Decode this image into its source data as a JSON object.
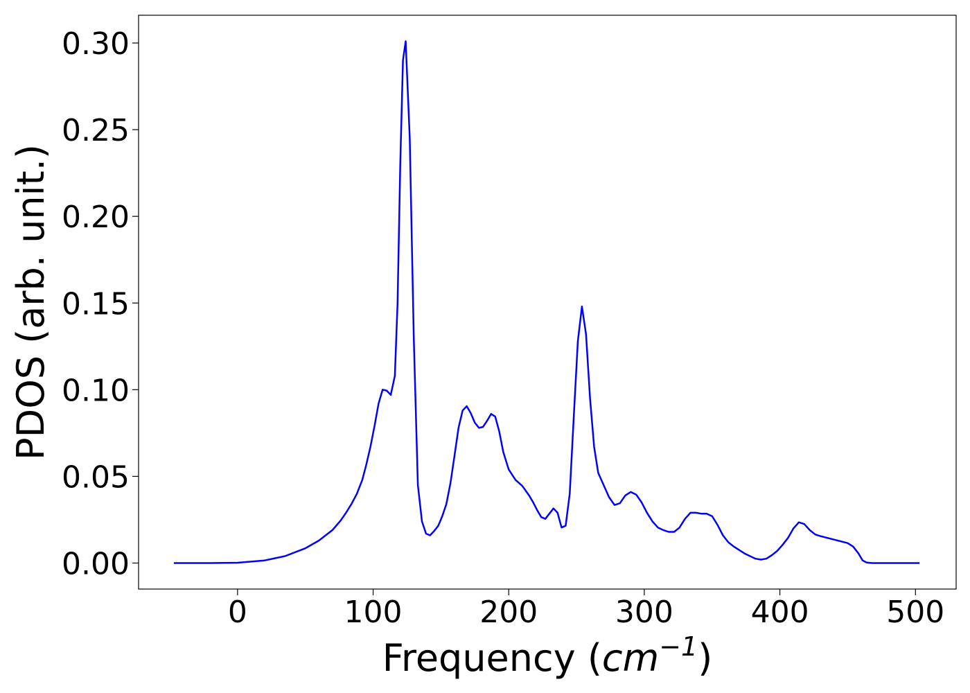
{
  "chart_data": {
    "type": "line",
    "title": "",
    "xlabel": "Frequency",
    "xlabel_unit_base": "cm",
    "xlabel_unit_exponent": "−1",
    "ylabel": "PDOS (arb. unit.)",
    "xlim": [
      -73,
      530
    ],
    "ylim": [
      -0.015,
      0.316
    ],
    "xticks": [
      0,
      100,
      200,
      300,
      400,
      500
    ],
    "xtick_labels": [
      "0",
      "100",
      "200",
      "300",
      "400",
      "500"
    ],
    "yticks": [
      0.0,
      0.05,
      0.1,
      0.15,
      0.2,
      0.25,
      0.3
    ],
    "ytick_labels": [
      "0.00",
      "0.05",
      "0.10",
      "0.15",
      "0.20",
      "0.25",
      "0.30"
    ],
    "grid": false,
    "legend": "none",
    "series": [
      {
        "color": "#0000ff",
        "x": [
          -47,
          -20,
          0,
          20,
          35,
          50,
          60,
          70,
          76,
          80,
          84,
          88,
          92,
          95,
          98,
          101,
          104,
          107,
          110,
          113,
          116,
          118,
          120,
          122,
          124,
          127,
          130,
          133,
          136,
          139,
          142,
          145,
          148,
          151,
          154,
          157,
          160,
          163,
          166,
          169,
          172,
          175,
          178,
          181,
          184,
          187,
          190,
          193,
          196,
          200,
          205,
          210,
          215,
          218,
          221,
          224,
          227,
          230,
          233,
          236,
          239,
          242,
          245,
          248,
          251,
          254,
          257,
          260,
          263,
          266,
          270,
          274,
          278,
          282,
          286,
          290,
          294,
          298,
          302,
          306,
          310,
          314,
          318,
          322,
          326,
          330,
          334,
          338,
          342,
          346,
          350,
          354,
          358,
          362,
          366,
          370,
          374,
          378,
          382,
          386,
          390,
          394,
          398,
          402,
          406,
          410,
          414,
          418,
          422,
          426,
          430,
          435,
          440,
          445,
          450,
          454,
          458,
          461,
          464,
          468,
          475,
          485,
          500,
          503
        ],
        "y": [
          0.0,
          0.0,
          0.0002,
          0.0015,
          0.004,
          0.0085,
          0.013,
          0.019,
          0.0245,
          0.029,
          0.034,
          0.04,
          0.048,
          0.057,
          0.067,
          0.079,
          0.092,
          0.1,
          0.0995,
          0.097,
          0.108,
          0.15,
          0.23,
          0.29,
          0.301,
          0.245,
          0.13,
          0.045,
          0.024,
          0.017,
          0.016,
          0.0185,
          0.0215,
          0.027,
          0.034,
          0.046,
          0.062,
          0.078,
          0.088,
          0.0905,
          0.0865,
          0.081,
          0.078,
          0.0785,
          0.082,
          0.086,
          0.0845,
          0.076,
          0.064,
          0.054,
          0.048,
          0.0445,
          0.039,
          0.035,
          0.0305,
          0.0265,
          0.0255,
          0.0285,
          0.0315,
          0.029,
          0.0205,
          0.0215,
          0.04,
          0.085,
          0.128,
          0.148,
          0.132,
          0.095,
          0.067,
          0.052,
          0.045,
          0.038,
          0.0335,
          0.0345,
          0.039,
          0.041,
          0.0395,
          0.035,
          0.029,
          0.024,
          0.0205,
          0.019,
          0.018,
          0.018,
          0.0205,
          0.0255,
          0.029,
          0.029,
          0.0285,
          0.0285,
          0.027,
          0.022,
          0.016,
          0.012,
          0.0095,
          0.0075,
          0.0055,
          0.004,
          0.0025,
          0.002,
          0.0025,
          0.0045,
          0.007,
          0.0105,
          0.0145,
          0.02,
          0.0235,
          0.0225,
          0.019,
          0.0165,
          0.0155,
          0.0145,
          0.0135,
          0.0125,
          0.0115,
          0.0095,
          0.0055,
          0.0015,
          0.0003,
          0.0,
          0.0,
          0.0,
          0.0,
          0.0
        ]
      }
    ]
  }
}
